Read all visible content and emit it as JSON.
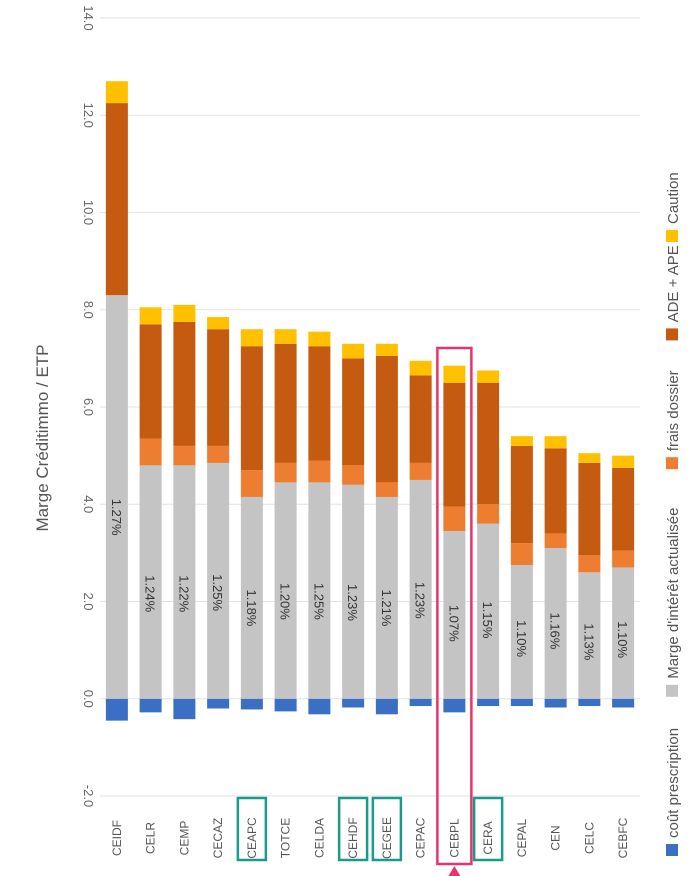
{
  "chart_data": {
    "type": "bar",
    "stacked": true,
    "orientation": "vertical (image rotated 90° clockwise)",
    "ylabel": "Marge Créditimmo / ETP",
    "ylim": [
      -2.0,
      14.0
    ],
    "yticks": [
      "-2.0",
      "0.0",
      "2.0",
      "4.0",
      "6.0",
      "8.0",
      "10.0",
      "12.0",
      "14.0"
    ],
    "grid": true,
    "legend_position": "right",
    "categories": [
      "CEIDF",
      "CELR",
      "CEMP",
      "CECAZ",
      "CEAPC",
      "TOTCE",
      "CELDA",
      "CEHDF",
      "CEGEE",
      "CEPAC",
      "CEBPL",
      "CERA",
      "CEPAL",
      "CEN",
      "CELC",
      "CEBFC"
    ],
    "series": [
      {
        "name": "coût prescription",
        "color": "#3a6fc4",
        "values": [
          -0.45,
          -0.28,
          -0.42,
          -0.2,
          -0.22,
          -0.26,
          -0.32,
          -0.18,
          -0.32,
          -0.15,
          -0.28,
          -0.15,
          -0.15,
          -0.18,
          -0.15,
          -0.18
        ]
      },
      {
        "name": "Marge d'intérêt actualisée",
        "color": "#c4c4c4",
        "values": [
          8.3,
          4.8,
          4.8,
          4.85,
          4.15,
          4.45,
          4.45,
          4.4,
          4.15,
          4.5,
          3.45,
          3.6,
          2.75,
          3.1,
          2.6,
          2.7
        ]
      },
      {
        "name": "frais dossier",
        "color": "#ed7d31",
        "values": [
          0.0,
          0.55,
          0.4,
          0.35,
          0.55,
          0.4,
          0.45,
          0.4,
          0.3,
          0.35,
          0.5,
          0.4,
          0.45,
          0.3,
          0.35,
          0.35
        ]
      },
      {
        "name": "ADE + APE",
        "color": "#c55a11",
        "values": [
          3.95,
          2.35,
          2.55,
          2.4,
          2.55,
          2.45,
          2.35,
          2.2,
          2.6,
          1.8,
          2.55,
          2.5,
          2.0,
          1.75,
          1.9,
          1.7
        ]
      },
      {
        "name": "Caution",
        "color": "#ffc000",
        "values": [
          0.45,
          0.35,
          0.35,
          0.25,
          0.35,
          0.3,
          0.3,
          0.3,
          0.25,
          0.3,
          0.35,
          0.25,
          0.2,
          0.25,
          0.2,
          0.25
        ]
      }
    ],
    "data_labels": [
      "1.27%",
      "1.24%",
      "1.22%",
      "1.25%",
      "1.18%",
      "1.20%",
      "1.25%",
      "1.23%",
      "1.21%",
      "1.23%",
      "1.07%",
      "1.15%",
      "1.10%",
      "1.16%",
      "1.13%",
      "1.10%"
    ],
    "highlight_boxes": [
      "CEAPC",
      "CEHDF",
      "CEGEE",
      "CERA"
    ],
    "highlight_color": "#1a9a8c",
    "callout": "CEBPL",
    "callout_color": "#e8336d"
  }
}
